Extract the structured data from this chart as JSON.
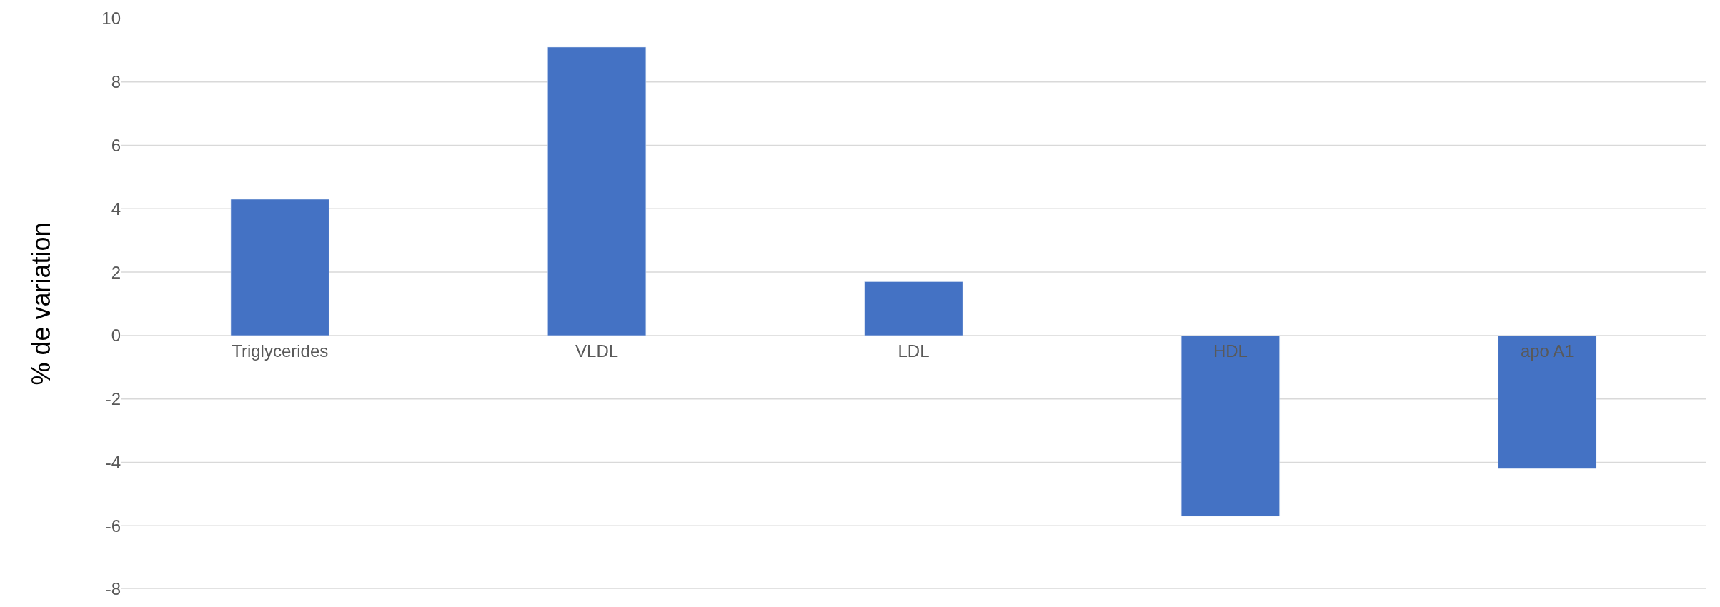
{
  "chart_data": {
    "type": "bar",
    "ylabel": "% de variation",
    "categories": [
      "Triglycerides",
      "VLDL",
      "LDL",
      "HDL",
      "apo A1"
    ],
    "values": [
      4.3,
      9.1,
      1.7,
      -5.7,
      -4.2
    ],
    "color": "#4472c4",
    "ylim": [
      -8,
      10
    ],
    "yticks": [
      -8,
      -6,
      -4,
      -2,
      0,
      2,
      4,
      6,
      8,
      10
    ],
    "grid": "y"
  }
}
